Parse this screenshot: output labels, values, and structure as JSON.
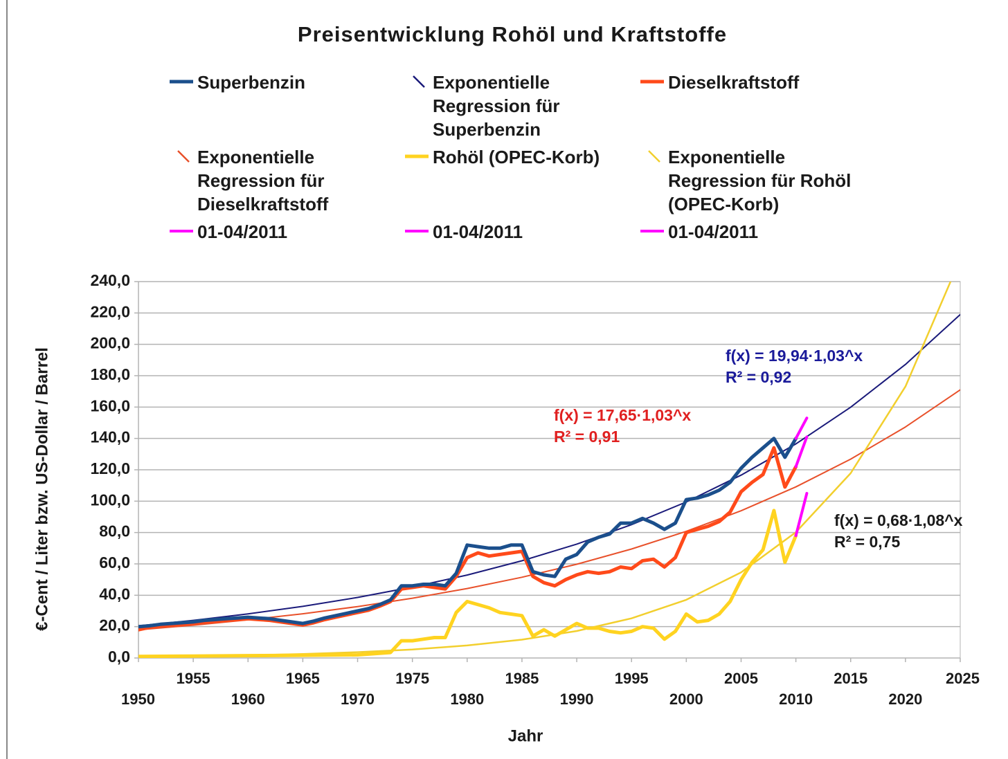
{
  "chart_data": {
    "type": "line",
    "title": "Preisentwicklung Rohöl und Kraftstoffe",
    "xlabel": "Jahr",
    "ylabel": "€-Cent / Liter bzw. US-Dollar / Barrel",
    "xlim": [
      1950,
      2025
    ],
    "xticks": [
      1950,
      1955,
      1960,
      1965,
      1970,
      1975,
      1980,
      1985,
      1990,
      1995,
      2000,
      2005,
      2010,
      2015,
      2020,
      2025
    ],
    "ylim": [
      0,
      240
    ],
    "yticks": [
      {
        "value": 0,
        "label": "0,0"
      },
      {
        "value": 20,
        "label": "20,0"
      },
      {
        "value": 40,
        "label": "40,0"
      },
      {
        "value": 60,
        "label": "60,0"
      },
      {
        "value": 80,
        "label": "80,0"
      },
      {
        "value": 100,
        "label": "100,0"
      },
      {
        "value": 120,
        "label": "120,0"
      },
      {
        "value": 140,
        "label": "140,0"
      },
      {
        "value": 160,
        "label": "160,0"
      },
      {
        "value": 180,
        "label": "180,0"
      },
      {
        "value": 200,
        "label": "200,0"
      },
      {
        "value": 220,
        "label": "220,0"
      },
      {
        "value": 240,
        "label": "240,0"
      }
    ],
    "grid": true,
    "series": [
      {
        "name": "Superbenzin",
        "color": "#1b4f8c",
        "width": 5,
        "x": [
          1950,
          1951,
          1952,
          1953,
          1954,
          1955,
          1956,
          1957,
          1958,
          1959,
          1960,
          1961,
          1962,
          1963,
          1964,
          1965,
          1966,
          1967,
          1968,
          1969,
          1970,
          1971,
          1972,
          1973,
          1974,
          1975,
          1976,
          1977,
          1978,
          1979,
          1980,
          1981,
          1982,
          1983,
          1984,
          1985,
          1986,
          1987,
          1988,
          1989,
          1990,
          1991,
          1992,
          1993,
          1994,
          1995,
          1996,
          1997,
          1998,
          1999,
          2000,
          2001,
          2002,
          2003,
          2004,
          2005,
          2006,
          2007,
          2008,
          2009,
          2010
        ],
        "values": [
          20,
          20.5,
          21.5,
          22,
          22.5,
          23,
          24,
          24.5,
          25,
          25.5,
          26,
          25.5,
          25,
          24,
          23,
          22,
          23.5,
          25.5,
          27,
          28.5,
          30,
          31.5,
          34,
          37,
          46,
          46,
          47,
          47,
          46,
          54,
          72,
          71,
          70,
          70,
          72,
          72,
          55,
          53,
          52,
          63,
          66,
          74,
          77,
          79,
          86,
          86,
          89,
          86,
          82,
          86,
          101,
          102,
          104,
          107,
          112,
          121,
          128,
          134,
          140,
          128,
          140
        ]
      },
      {
        "name": "Exponentielle Regression für Superbenzin",
        "color": "#1a1a7a",
        "width": 2,
        "x": [
          1950,
          1955,
          1960,
          1965,
          1970,
          1975,
          1980,
          1985,
          1990,
          1995,
          2000,
          2005,
          2010,
          2015,
          2020,
          2025
        ],
        "values": [
          20.5,
          24,
          28.1,
          32.9,
          38.6,
          45.2,
          52.9,
          62,
          72.6,
          85,
          99.5,
          116.6,
          136.5,
          159.9,
          187.2,
          219
        ]
      },
      {
        "name": "Dieselkraftstoff",
        "color": "#ff4a1a",
        "width": 5,
        "x": [
          1950,
          1951,
          1952,
          1953,
          1954,
          1955,
          1956,
          1957,
          1958,
          1959,
          1960,
          1961,
          1962,
          1963,
          1964,
          1965,
          1966,
          1967,
          1968,
          1969,
          1970,
          1971,
          1972,
          1973,
          1974,
          1975,
          1976,
          1977,
          1978,
          1979,
          1980,
          1981,
          1982,
          1983,
          1984,
          1985,
          1986,
          1987,
          1988,
          1989,
          1990,
          1991,
          1992,
          1993,
          1994,
          1995,
          1996,
          1997,
          1998,
          1999,
          2000,
          2001,
          2002,
          2003,
          2004,
          2005,
          2006,
          2007,
          2008,
          2009,
          2010
        ],
        "values": [
          18,
          19.5,
          20.5,
          21,
          21.5,
          22,
          23,
          23.5,
          24,
          24.5,
          25,
          24.5,
          24,
          23,
          22,
          21,
          22.5,
          24.5,
          26,
          27.5,
          29,
          30.5,
          33,
          36,
          44,
          45,
          46,
          45,
          44,
          52,
          64,
          67,
          65,
          66,
          67,
          68,
          52,
          48,
          46,
          50,
          53,
          55,
          54,
          55,
          58,
          57,
          62,
          63,
          58,
          64,
          80,
          82,
          84,
          87,
          93,
          106,
          112,
          117,
          134,
          109,
          122
        ]
      },
      {
        "name": "Exponentielle Regression für Dieselkraftstoff",
        "color": "#e8502a",
        "width": 2,
        "x": [
          1950,
          1955,
          1960,
          1965,
          1970,
          1975,
          1980,
          1985,
          1990,
          1995,
          2000,
          2005,
          2010,
          2015,
          2020,
          2025
        ],
        "values": [
          18,
          20.9,
          24.3,
          28.2,
          32.8,
          38.1,
          44.3,
          51.5,
          59.8,
          69.5,
          80.8,
          93.9,
          109.1,
          126.8,
          147.3,
          171
        ]
      },
      {
        "name": "Rohöl (OPEC-Korb)",
        "color": "#ffd320",
        "width": 5,
        "x": [
          1950,
          1955,
          1960,
          1965,
          1970,
          1973,
          1974,
          1975,
          1976,
          1977,
          1978,
          1979,
          1980,
          1981,
          1982,
          1983,
          1984,
          1985,
          1986,
          1987,
          1988,
          1989,
          1990,
          1991,
          1992,
          1993,
          1994,
          1995,
          1996,
          1997,
          1998,
          1999,
          2000,
          2001,
          2002,
          2003,
          2004,
          2005,
          2006,
          2007,
          2008,
          2009,
          2010
        ],
        "values": [
          1,
          1.2,
          1.5,
          1.7,
          2,
          3.5,
          11,
          11,
          12,
          13,
          13,
          29,
          36,
          34,
          32,
          29,
          28,
          27,
          14,
          18,
          14,
          18,
          22,
          19,
          19,
          17,
          16,
          17,
          20,
          19,
          12,
          17,
          28,
          23,
          24,
          28,
          36,
          50,
          61,
          69,
          94,
          61,
          78
        ]
      },
      {
        "name": "Exponentielle Regression für Rohöl (OPEC-Korb)",
        "color": "#f2cf2e",
        "width": 2.5,
        "x": [
          1950,
          1955,
          1960,
          1965,
          1970,
          1975,
          1980,
          1985,
          1990,
          1995,
          2000,
          2005,
          2010,
          2015,
          2020,
          2025
        ],
        "values": [
          0.79,
          1.17,
          1.71,
          2.52,
          3.7,
          5.43,
          7.98,
          11.7,
          17.2,
          25.3,
          37.1,
          54.6,
          80.2,
          117.8,
          173.1,
          254.4
        ]
      },
      {
        "name": "01-04/2011",
        "color": "#ff00ff",
        "width": 4,
        "x": [
          2010,
          2011
        ],
        "values": [
          140,
          153
        ]
      },
      {
        "name": "01-04/2011",
        "color": "#ff00ff",
        "width": 4,
        "x": [
          2010,
          2011
        ],
        "values": [
          122,
          141
        ]
      },
      {
        "name": "01-04/2011",
        "color": "#ff00ff",
        "width": 4,
        "x": [
          2010,
          2011
        ],
        "values": [
          78,
          105
        ]
      }
    ],
    "annotations": [
      {
        "lines": [
          "f(x) = 19,94·1,03^x",
          "R² = 0,92"
        ],
        "color": "#1a1a9a"
      },
      {
        "lines": [
          "f(x) = 17,65·1,03^x",
          "R² = 0,91"
        ],
        "color": "#e02020"
      },
      {
        "lines": [
          "f(x) = 0,68·1,08^x",
          "R² = 0,75"
        ],
        "color": "#1a1a1a"
      }
    ]
  }
}
